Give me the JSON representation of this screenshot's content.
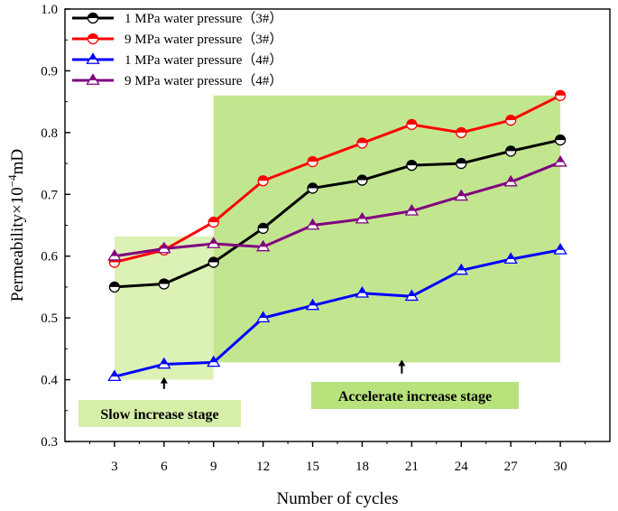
{
  "chart_data": {
    "type": "line",
    "title": "",
    "xlabel": "Number of cycles",
    "ylabel_main": "Permeability×10",
    "ylabel_exp": "−4",
    "ylabel_unit": "mD",
    "xlim": [
      0,
      33
    ],
    "ylim": [
      0.3,
      1.0
    ],
    "x": [
      3,
      6,
      9,
      12,
      15,
      18,
      21,
      24,
      27,
      30
    ],
    "x_ticks": [
      "3",
      "6",
      "9",
      "12",
      "15",
      "18",
      "21",
      "24",
      "27",
      "30"
    ],
    "y_ticks": [
      {
        "v": 0.3,
        "label": "0.3"
      },
      {
        "v": 0.4,
        "label": "0.4"
      },
      {
        "v": 0.5,
        "label": "0.5"
      },
      {
        "v": 0.6,
        "label": "0.6"
      },
      {
        "v": 0.7,
        "label": "0.7"
      },
      {
        "v": 0.8,
        "label": "0.8"
      },
      {
        "v": 0.9,
        "label": "0.9"
      },
      {
        "v": 1.0,
        "label": "1.0"
      }
    ],
    "series": [
      {
        "name": "1 MPa water pressure（3#）",
        "color": "#000000",
        "marker": "half-circle",
        "values": [
          0.55,
          0.555,
          0.59,
          0.645,
          0.71,
          0.723,
          0.747,
          0.75,
          0.77,
          0.788
        ]
      },
      {
        "name": "9 MPa water pressure（3#）",
        "color": "#ff0000",
        "marker": "half-circle",
        "values": [
          0.59,
          0.61,
          0.655,
          0.722,
          0.753,
          0.783,
          0.813,
          0.8,
          0.82,
          0.86
        ]
      },
      {
        "name": "1 MPa water pressure（4#）",
        "color": "#0000ff",
        "marker": "half-triangle",
        "values": [
          0.405,
          0.425,
          0.428,
          0.5,
          0.52,
          0.54,
          0.535,
          0.577,
          0.595,
          0.61
        ]
      },
      {
        "name": "9 MPa water pressure（4#）",
        "color": "#800080",
        "marker": "half-triangle",
        "values": [
          0.6,
          0.612,
          0.62,
          0.615,
          0.65,
          0.66,
          0.673,
          0.697,
          0.72,
          0.752
        ]
      }
    ],
    "regions": [
      {
        "name": "slow",
        "label": "Slow increase stage",
        "x_range": [
          3,
          9
        ],
        "y_range": [
          0.4,
          0.632
        ],
        "color": "#d6efa8"
      },
      {
        "name": "accelerate",
        "label": "Accelerate increase stage",
        "x_range": [
          9,
          30
        ],
        "y_range": [
          0.428,
          0.86
        ],
        "color": "#b7e27c"
      }
    ],
    "annotations": [
      {
        "name": "slow-arrow",
        "x": 6,
        "y_from": 0.385,
        "y_to": 0.4
      },
      {
        "name": "accelerate-arrow",
        "x": 20.4,
        "y_from": 0.41,
        "y_to": 0.428
      }
    ],
    "legend_position": "top-left",
    "grid": false
  }
}
